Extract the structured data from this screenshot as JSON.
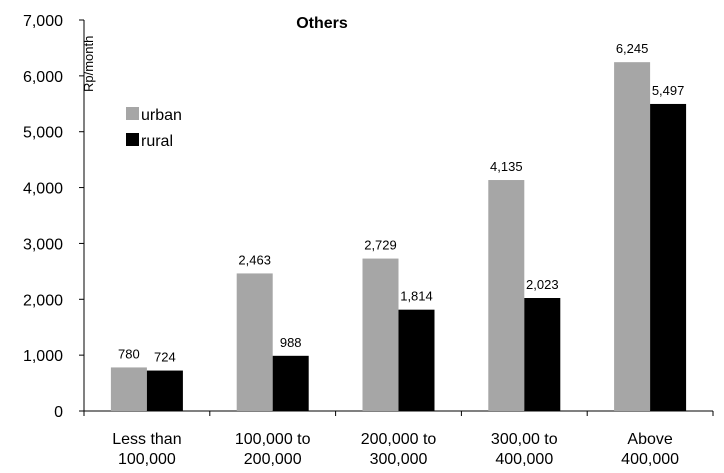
{
  "chart_data": {
    "type": "bar",
    "title": "Others",
    "ylabel": "Rp/month",
    "xlabel": "",
    "ylim": [
      0,
      7000
    ],
    "yticks": [
      "0",
      "1,000",
      "2,000",
      "3,000",
      "4,000",
      "5,000",
      "6,000",
      "7,000"
    ],
    "yticks_values": [
      0,
      1000,
      2000,
      3000,
      4000,
      5000,
      6000,
      7000
    ],
    "categories": [
      [
        "Less than",
        "100,000"
      ],
      [
        "100,000 to",
        "200,000"
      ],
      [
        "200,000 to",
        "300,000"
      ],
      [
        "300,00 to",
        "400,000"
      ],
      [
        "Above",
        "400,000"
      ]
    ],
    "series": [
      {
        "name": "urban",
        "color": "#a6a6a6",
        "values": [
          780,
          2463,
          2729,
          4135,
          6245
        ],
        "labels": [
          "780",
          "2,463",
          "2,729",
          "4,135",
          "6,245"
        ]
      },
      {
        "name": "rural",
        "color": "#000000",
        "values": [
          724,
          988,
          1814,
          2023,
          5497
        ],
        "labels": [
          "724",
          "988",
          "1,814",
          "2,023",
          "5,497"
        ]
      }
    ],
    "grid": false,
    "legend": "top-left"
  }
}
